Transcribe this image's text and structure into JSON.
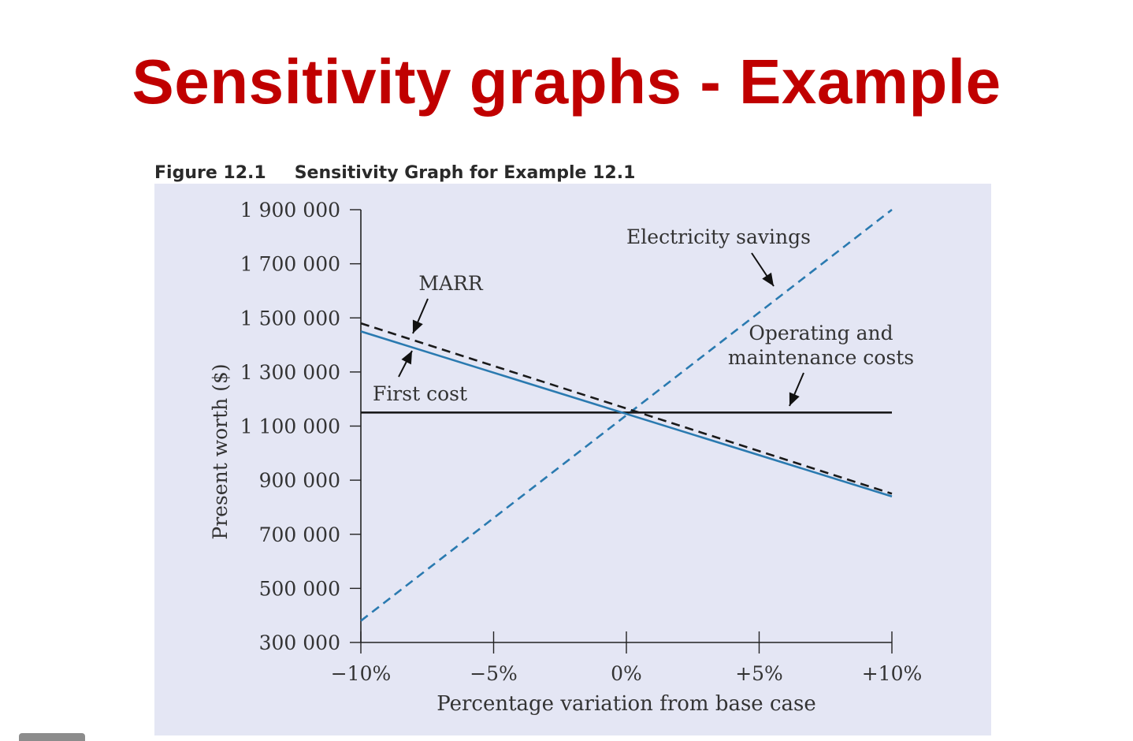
{
  "slide": {
    "title": "Sensitivity graphs - Example",
    "title_color": "#c00000"
  },
  "figure": {
    "number": "Figure 12.1",
    "caption": "Sensitivity Graph for Example 12.1",
    "panel_color": "#e4e6f4"
  },
  "chart_data": {
    "type": "line",
    "xlabel": "Percentage variation from base case",
    "ylabel": "Present worth ($)",
    "x_ticks": [
      "−10%",
      "−5%",
      "0%",
      "+5%",
      "+10%"
    ],
    "y_ticks": [
      "1 900 000",
      "1 700 000",
      "1 500 000",
      "1 300 000",
      "1 100 000",
      "900 000",
      "700 000",
      "500 000",
      "300 000"
    ],
    "xlim": [
      -10,
      10
    ],
    "ylim": [
      300000,
      1900000
    ],
    "grid": false,
    "series": [
      {
        "name": "Electricity savings",
        "x": [
          -10,
          10
        ],
        "y": [
          380000,
          1900000
        ],
        "color": "#2a7ab0",
        "dash": true
      },
      {
        "name": "Operating and maintenance costs",
        "x": [
          -10,
          10
        ],
        "y": [
          1150000,
          1150000
        ],
        "color": "#1a1a1a",
        "dash": false
      },
      {
        "name": "MARR",
        "x": [
          -10,
          10
        ],
        "y": [
          1480000,
          850000
        ],
        "color": "#1a1a1a",
        "dash": true
      },
      {
        "name": "First cost",
        "x": [
          -10,
          10
        ],
        "y": [
          1450000,
          840000
        ],
        "color": "#2a7ab0",
        "dash": false
      }
    ]
  }
}
